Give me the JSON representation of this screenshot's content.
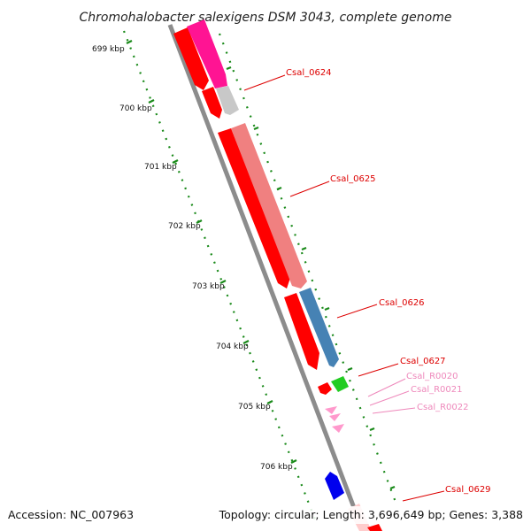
{
  "title": "Chromohalobacter salexigens DSM 3043, complete genome",
  "scale_labels": [
    {
      "value": 699,
      "text": "699 kbp"
    },
    {
      "value": 700,
      "text": "700 kbp"
    },
    {
      "value": 701,
      "text": "701 kbp"
    },
    {
      "value": 702,
      "text": "702 kbp"
    },
    {
      "value": 703,
      "text": "703 kbp"
    },
    {
      "value": 704,
      "text": "704 kbp"
    },
    {
      "value": 705,
      "text": "705 kbp"
    },
    {
      "value": 706,
      "text": "706 kbp"
    }
  ],
  "gene_labels": [
    {
      "text": "Csal_0624",
      "color": "#dd0000"
    },
    {
      "text": "Csal_0625",
      "color": "#dd0000"
    },
    {
      "text": "Csal_0626",
      "color": "#dd0000"
    },
    {
      "text": "Csal_0627",
      "color": "#dd0000"
    },
    {
      "text": "Csal_R0020",
      "color": "#ee88bb"
    },
    {
      "text": "Csal_R0021",
      "color": "#ee88bb"
    },
    {
      "text": "Csal_R0022",
      "color": "#ee88bb"
    },
    {
      "text": "Csal_0629",
      "color": "#dd0000"
    }
  ],
  "colors": {
    "cds_red": "#ff0000",
    "magenta": "#ff1493",
    "grey": "#c8c8c8",
    "salmon": "#f08080",
    "steelblue": "#4682b4",
    "green": "#22cc22",
    "pink_rna": "#ff99cc",
    "blue": "#0000ee",
    "backbone": "#8c8c8c",
    "tick_green": "#1a8a1a"
  },
  "footer": {
    "accession": "Accession: NC_007963",
    "topology": "Topology: circular; Length: 3,696,649 bp; Genes: 3,388"
  }
}
